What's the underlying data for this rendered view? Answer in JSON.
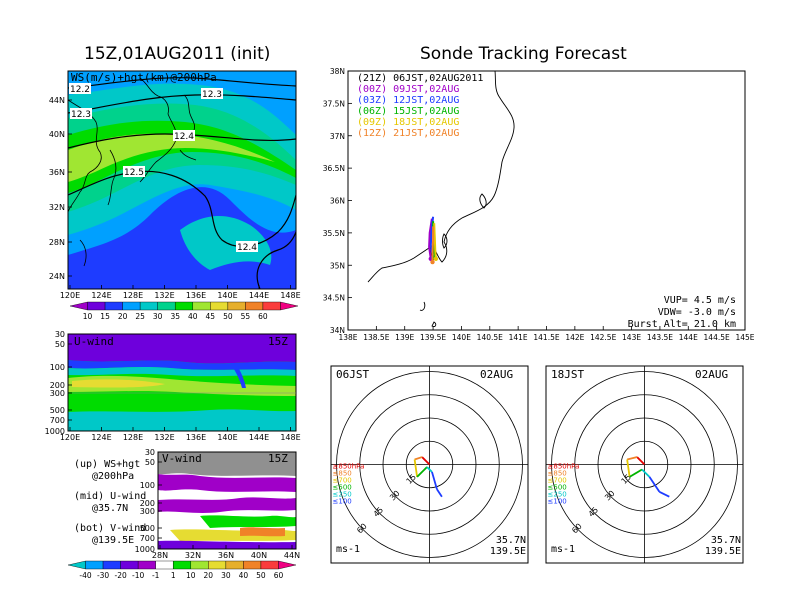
{
  "page": {
    "left_title": "15Z,01AUG2011 (init)",
    "right_title": "Sonde Tracking Forecast"
  },
  "ws_map": {
    "label": "WS(m/s)+hgt(km)@200hPa",
    "x_ticks": [
      "120E",
      "124E",
      "128E",
      "132E",
      "136E",
      "140E",
      "144E",
      "148E"
    ],
    "y_ticks": [
      "44N",
      "40N",
      "36N",
      "32N",
      "28N",
      "24N"
    ],
    "contour_labels": [
      "12.2",
      "12.3",
      "12.3",
      "12.4",
      "12.5",
      "12.4"
    ],
    "colorbar_ticks": [
      "10",
      "15",
      "20",
      "25",
      "30",
      "35",
      "40",
      "45",
      "50",
      "55",
      "60"
    ],
    "colorbar_colors": [
      "#a000c8",
      "#6e00dc",
      "#1e3cff",
      "#00a0ff",
      "#00c8c8",
      "#00d28c",
      "#00dc00",
      "#a0e632",
      "#e6dc32",
      "#e6af2d",
      "#f08228",
      "#fa3c3c",
      "#f00082"
    ]
  },
  "u_wind": {
    "label": "U-wind",
    "time": "15Z",
    "y_ticks": [
      "30",
      "50",
      "100",
      "200",
      "300",
      "500",
      "700",
      "1000"
    ],
    "x_ticks": [
      "120E",
      "124E",
      "128E",
      "132E",
      "136E",
      "140E",
      "144E",
      "148E"
    ]
  },
  "v_wind": {
    "label": "V-wind",
    "time": "15Z",
    "y_ticks": [
      "30",
      "50",
      "100",
      "200",
      "300",
      "500",
      "700",
      "1000"
    ],
    "x_ticks": [
      "28N",
      "32N",
      "36N",
      "40N",
      "44N"
    ],
    "colorbar_ticks": [
      "-40",
      "-30",
      "-20",
      "-10",
      "-1",
      "1",
      "10",
      "20",
      "30",
      "40",
      "50",
      "60"
    ],
    "colorbar_colors": [
      "#00c8c8",
      "#00a0ff",
      "#1e3cff",
      "#6e00dc",
      "#a000c8",
      "#ffffff",
      "#00dc00",
      "#a0e632",
      "#e6dc32",
      "#e6af2d",
      "#f08228",
      "#fa3c3c",
      "#f00082"
    ]
  },
  "notes": [
    {
      "a": "(up) WS+hgt",
      "b": "@200hPa"
    },
    {
      "a": "(mid) U-wind",
      "b": "@35.7N"
    },
    {
      "a": "(bot) V-wind",
      "b": "@139.5E"
    }
  ],
  "track_map": {
    "x_ticks": [
      "138E",
      "138.5E",
      "139E",
      "139.5E",
      "140E",
      "140.5E",
      "141E",
      "141.5E",
      "142E",
      "142.5E",
      "143E",
      "143.5E",
      "144E",
      "144.5E",
      "145E"
    ],
    "y_ticks": [
      "38N",
      "37.5N",
      "37N",
      "36.5N",
      "36N",
      "35.5N",
      "35N",
      "34.5N",
      "34N"
    ],
    "legend": [
      {
        "code": "(21Z)",
        "text": "06JST,02AUG2011",
        "color": "#000000"
      },
      {
        "code": "(00Z)",
        "text": "09JST,02AUG",
        "color": "#a000c8"
      },
      {
        "code": "(03Z)",
        "text": "12JST,02AUG",
        "color": "#1e3cff"
      },
      {
        "code": "(06Z)",
        "text": "15JST,02AUG",
        "color": "#00b400"
      },
      {
        "code": "(09Z)",
        "text": "18JST,02AUG",
        "color": "#e6c800"
      },
      {
        "code": "(12Z)",
        "text": "21JST,02AUG",
        "color": "#f08228"
      }
    ],
    "params": [
      "VUP= 4.5 m/s",
      "VDW= -3.0 m/s",
      "Burst Alt= 21.0 km"
    ]
  },
  "hodographs": [
    {
      "time": "06JST",
      "date": "02AUG",
      "loc1": "35.7N",
      "loc2": "139.5E",
      "unit": "ms-1"
    },
    {
      "time": "18JST",
      "date": "02AUG",
      "loc1": "35.7N",
      "loc2": "139.5E",
      "unit": "ms-1"
    }
  ],
  "hodo_ring_labels": [
    "15",
    "30",
    "45",
    "60"
  ],
  "hodo_levels": [
    {
      "label": "≥850hPa",
      "color": "#e60000"
    },
    {
      "label": "≤850",
      "color": "#f08228"
    },
    {
      "label": "≤700",
      "color": "#e6c800"
    },
    {
      "label": "≤500",
      "color": "#00b400"
    },
    {
      "label": "≤250",
      "color": "#00c8c8"
    },
    {
      "label": "≤100",
      "color": "#1e3cff"
    }
  ],
  "chart_data": [
    {
      "type": "heatmap",
      "title": "WS(m/s)+hgt(km)@200hPa",
      "xlim": [
        "120E",
        "149E"
      ],
      "ylim": [
        "22N",
        "48N"
      ],
      "contour_values_km": [
        12.2,
        12.3,
        12.4,
        12.5
      ],
      "colorbar": [
        10,
        15,
        20,
        25,
        30,
        35,
        40,
        45,
        50,
        55,
        60
      ]
    },
    {
      "type": "heatmap",
      "title": "U-wind",
      "y_levels_hPa": [
        30,
        50,
        100,
        200,
        300,
        500,
        700,
        1000
      ],
      "x": [
        "120E",
        "124E",
        "128E",
        "132E",
        "136E",
        "140E",
        "144E",
        "148E"
      ]
    },
    {
      "type": "heatmap",
      "title": "V-wind",
      "y_levels_hPa": [
        30,
        50,
        100,
        200,
        300,
        500,
        700,
        1000
      ],
      "x": [
        "28N",
        "32N",
        "36N",
        "40N",
        "44N"
      ],
      "colorbar": [
        -40,
        -30,
        -20,
        -10,
        -1,
        1,
        10,
        20,
        30,
        40,
        50,
        60
      ]
    },
    {
      "type": "scatter",
      "title": "Sonde Tracking Forecast",
      "xlim": [
        138,
        145
      ],
      "ylim": [
        34,
        38
      ],
      "series": [
        {
          "name": "06JST,02AUG2011",
          "x": [
            139.48,
            139.46,
            139.45,
            139.48
          ],
          "y": [
            35.68,
            35.45,
            35.25,
            35.1
          ]
        },
        {
          "name": "09JST,02AUG",
          "x": [
            139.48,
            139.44,
            139.43,
            139.46
          ],
          "y": [
            35.72,
            35.5,
            35.28,
            35.1
          ]
        },
        {
          "name": "12JST,02AUG",
          "x": [
            139.5,
            139.47,
            139.46,
            139.5
          ],
          "y": [
            35.75,
            35.52,
            35.3,
            35.12
          ]
        },
        {
          "name": "15JST,02AUG",
          "x": [
            139.5,
            139.51,
            139.52,
            139.53
          ],
          "y": [
            35.68,
            35.46,
            35.26,
            35.12
          ]
        },
        {
          "name": "18JST,02AUG",
          "x": [
            139.52,
            139.53,
            139.54,
            139.55
          ],
          "y": [
            35.65,
            35.42,
            35.22,
            35.1
          ]
        },
        {
          "name": "21JST,02AUG",
          "x": [
            139.5,
            139.5,
            139.49,
            139.49
          ],
          "y": [
            35.6,
            35.38,
            35.2,
            35.05
          ]
        }
      ]
    },
    {
      "type": "line",
      "title": "06JST 02AUG",
      "rings_ms": [
        15,
        30,
        45,
        60
      ],
      "hodograph_uv_ms": [
        [
          0,
          0
        ],
        [
          -3,
          3
        ],
        [
          -6,
          2
        ],
        [
          -5,
          -5
        ],
        [
          -1,
          -1
        ],
        [
          1,
          -3
        ],
        [
          3,
          -10
        ],
        [
          5,
          -13
        ]
      ]
    },
    {
      "type": "line",
      "title": "18JST 02AUG",
      "rings_ms": [
        15,
        30,
        45,
        60
      ],
      "hodograph_uv_ms": [
        [
          0,
          0
        ],
        [
          -3,
          3
        ],
        [
          -7,
          2
        ],
        [
          -6,
          -5
        ],
        [
          -1,
          -2
        ],
        [
          2,
          -5
        ],
        [
          6,
          -11
        ],
        [
          10,
          -13
        ]
      ]
    }
  ]
}
